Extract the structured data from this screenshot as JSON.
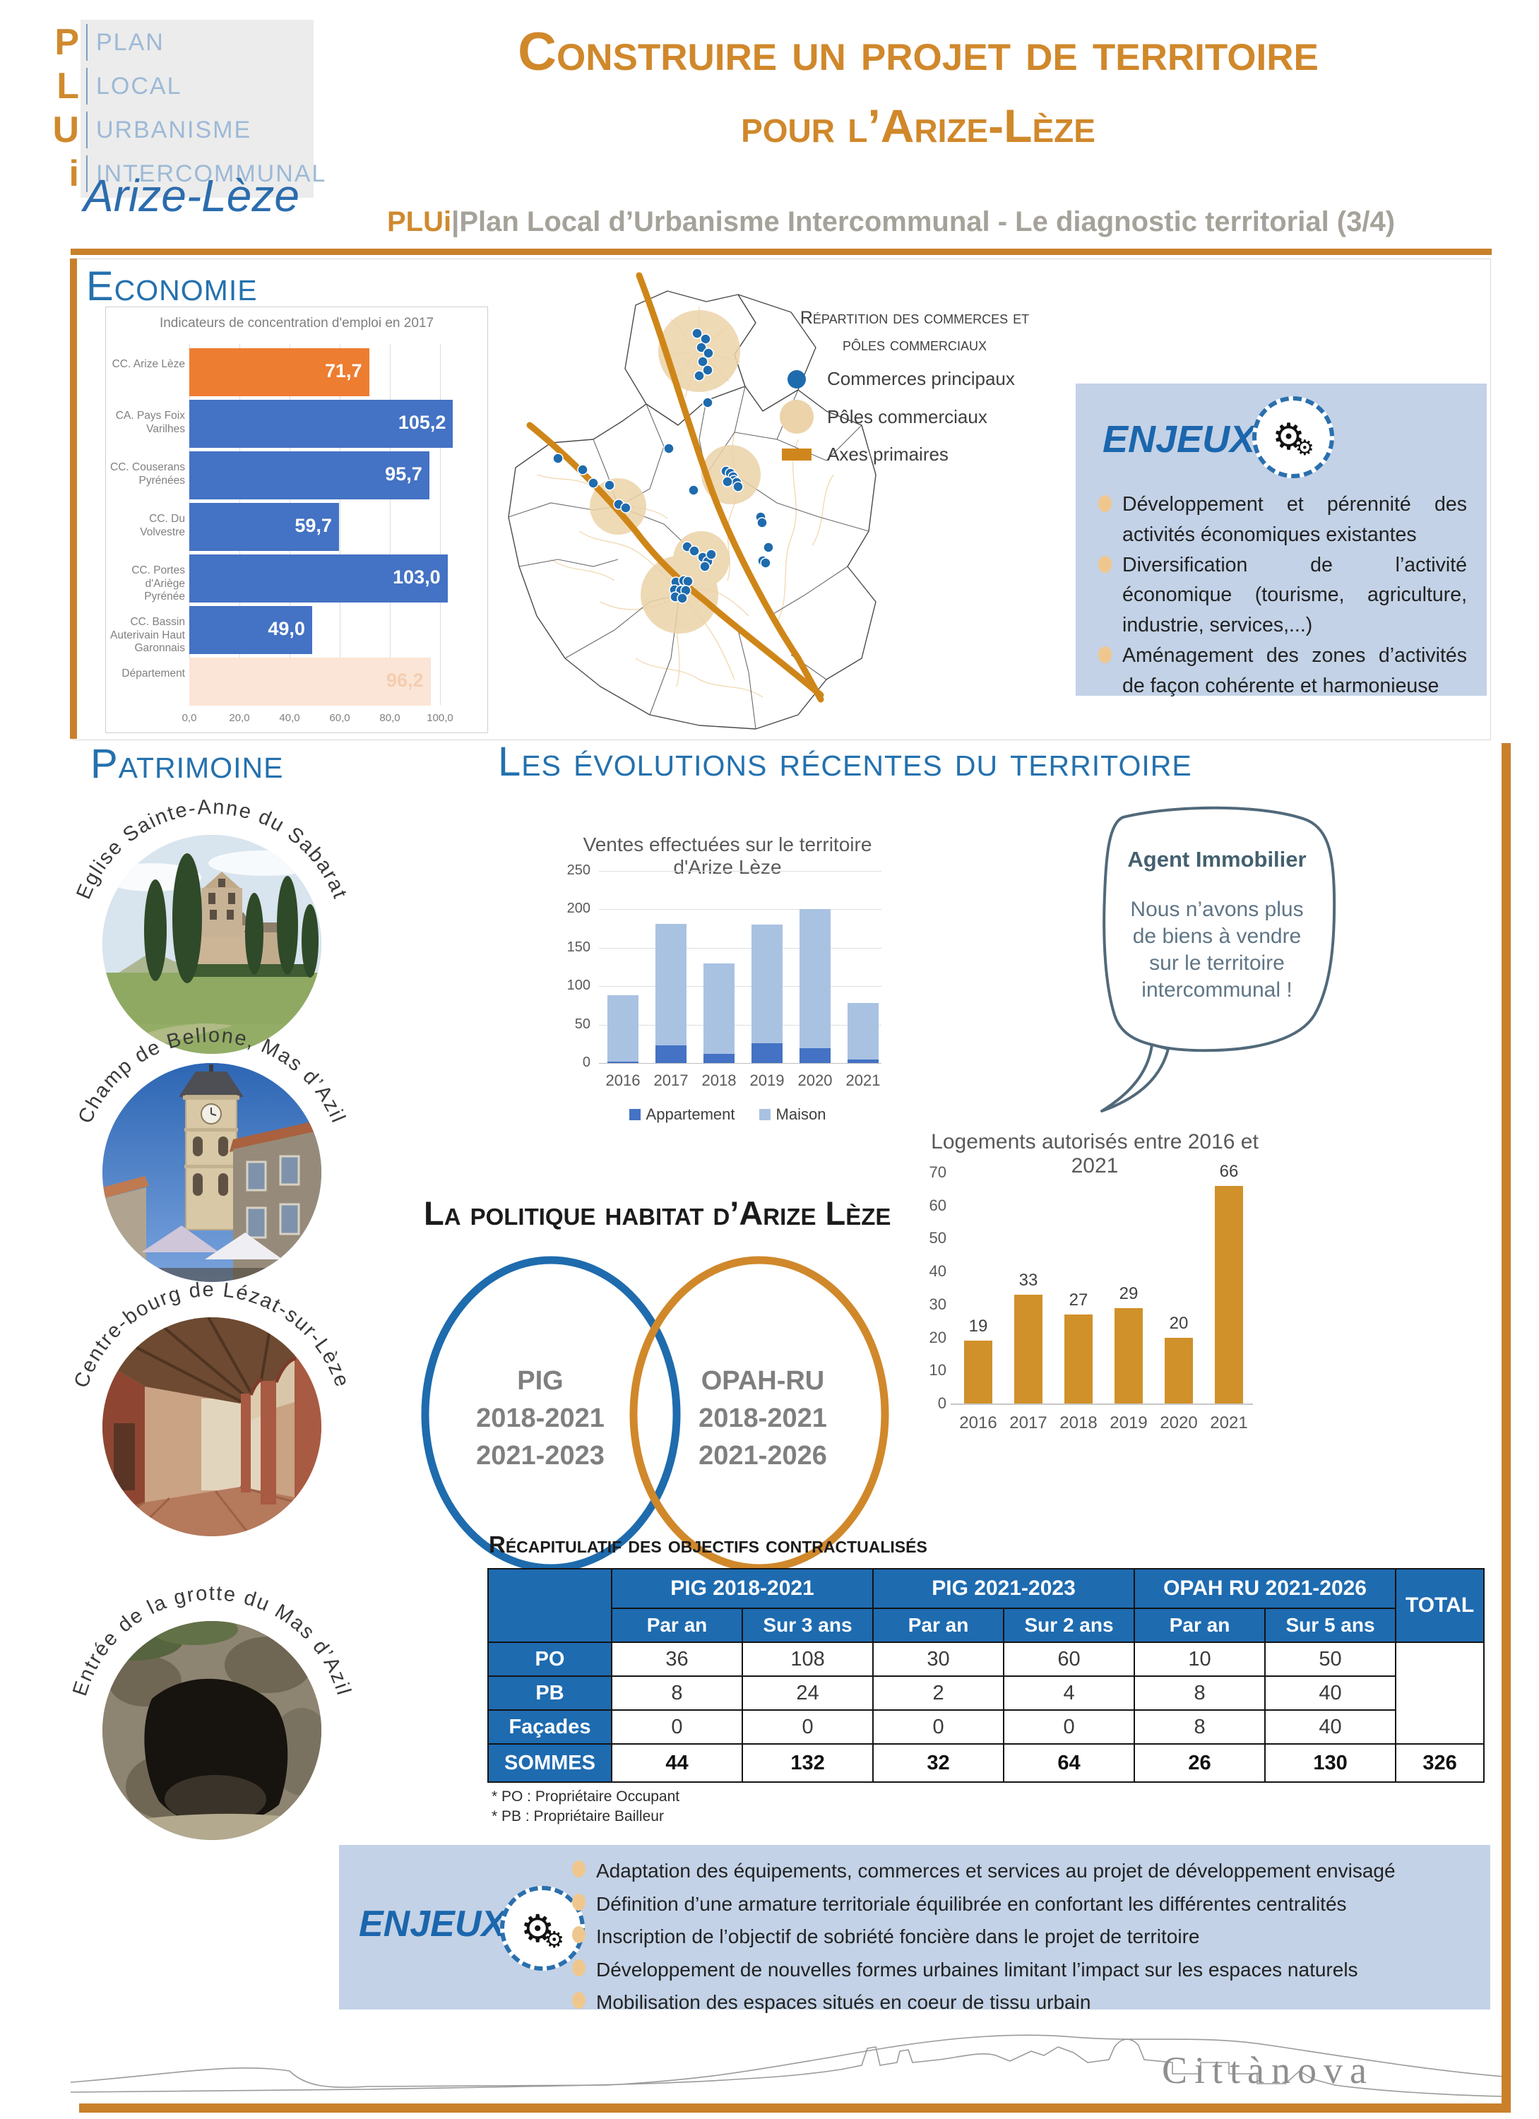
{
  "header": {
    "logo": {
      "rows": [
        {
          "letter": "P",
          "word": "PLAN"
        },
        {
          "letter": "L",
          "word": "LOCAL"
        },
        {
          "letter": "U",
          "word": "URBANISME"
        },
        {
          "letter": "i",
          "word": "INTERCOMMUNAL"
        }
      ],
      "territory": "Arize-Lèze"
    },
    "title_line1": "Construire un projet de territoire",
    "title_line2": "pour l’Arize-Lèze",
    "subtitle_prefix": "PLUi",
    "subtitle_rest": "|Plan Local d’Urbanisme Intercommunal - Le diagnostic territorial (3/4)"
  },
  "economie": {
    "section_title": "Economie",
    "map_legend": {
      "title_line1": "Répartition des commerces et",
      "title_line2": "pôles commerciaux",
      "items": [
        "Commerces principaux",
        "Pôles commerciaux",
        "Axes primaires"
      ]
    },
    "enjeux": {
      "title": "ENJEUX",
      "items": [
        "Développement et pérennité des activités économiques existantes",
        "Diversification de l’activité économique (tourisme, agriculture, industrie, services,...)",
        "Aménagement des zones d’activités de façon cohérente et harmonieuse"
      ]
    }
  },
  "patrimoine": {
    "section_title": "Patrimoine",
    "photos": [
      {
        "label": "Eglise Sainte-Anne du Sabarat"
      },
      {
        "label": "Champ de Bellone, Mas d’Azil"
      },
      {
        "label": "Centre-bourg de Lézat-sur-Lèze"
      },
      {
        "label": "Entrée de la grotte du Mas d’Azil"
      }
    ]
  },
  "evolutions": {
    "section_title": "Les évolutions récentes du territoire",
    "bubble": {
      "speaker": "Agent Immobilier",
      "lines": [
        "Nous n’avons plus",
        "de biens à vendre",
        "sur le territoire",
        "intercommunal !"
      ]
    },
    "politique_title": "La politique habitat d’Arize Lèze",
    "venn": {
      "left_lines": [
        "PIG",
        "2018-2021",
        "2021-2023"
      ],
      "right_lines": [
        "OPAH-RU",
        "2018-2021",
        "2021-2026"
      ]
    },
    "recap_title": "Récapitulatif des objectifs contractualisés",
    "table": {
      "col_groups": [
        "PIG 2018-2021",
        "PIG 2021-2023",
        "OPAH RU 2021-2026"
      ],
      "total_label": "TOTAL",
      "sub_headers": [
        "Par an",
        "Sur 3 ans",
        "Par an",
        "Sur 2 ans",
        "Par an",
        "Sur 5 ans"
      ],
      "rows": [
        {
          "label": "PO",
          "values": [
            "36",
            "108",
            "30",
            "60",
            "10",
            "50"
          ]
        },
        {
          "label": "PB",
          "values": [
            "8",
            "24",
            "2",
            "4",
            "8",
            "40"
          ]
        },
        {
          "label": "Façades",
          "values": [
            "0",
            "0",
            "0",
            "0",
            "8",
            "40"
          ]
        }
      ],
      "sommes": {
        "label": "SOMMES",
        "values": [
          "44",
          "132",
          "32",
          "64",
          "26",
          "130"
        ],
        "total": "326"
      },
      "footnotes": [
        "* PO : Propriétaire Occupant",
        "* PB : Propriétaire Bailleur"
      ]
    },
    "enjeux": {
      "title": "ENJEUX",
      "items": [
        "Adaptation des équipements, commerces et services au projet de développement envisagé",
        "Définition d’une armature territoriale équilibrée en confortant les différentes centralités",
        "Inscription de l’objectif de sobriété foncière dans le projet de territoire",
        "Développement de nouvelles formes urbaines limitant l’impact sur les espaces naturels",
        "Mobilisation des espaces situés en coeur de tissu urbain"
      ]
    }
  },
  "footer": {
    "logo_text": "Cittànova"
  },
  "colors": {
    "accent_orange": "#d0882b",
    "header_blue": "#2471ae",
    "table_blue": "#1e6bb0",
    "enjeux_bg": "#c3d2e6",
    "bullet_dot": "#efc78e"
  },
  "chart_data": [
    {
      "id": "emploi",
      "type": "bar",
      "orientation": "horizontal",
      "title": "Indicateurs de concentration d'emploi en 2017",
      "categories": [
        "CC. Arize Lèze",
        "CA. Pays Foix Varilhes",
        "CC. Couserans Pyrénées",
        "CC. Du Volvestre",
        "CC. Portes d'Ariège Pyrénée",
        "CC. Bassin Auterivain Haut Garonnais",
        "Département"
      ],
      "values": [
        71.7,
        105.2,
        95.7,
        59.7,
        103.0,
        49.0,
        96.2
      ],
      "value_labels": [
        "71,7",
        "105,2",
        "95,7",
        "59,7",
        "103,0",
        "49,0",
        "96,2"
      ],
      "bar_colors": [
        "#ed7d31",
        "#4472c4",
        "#4472c4",
        "#4472c4",
        "#4472c4",
        "#4472c4",
        "#fbe5d6"
      ],
      "value_label_colors": [
        "#ffffff",
        "#ffffff",
        "#ffffff",
        "#ffffff",
        "#ffffff",
        "#ffffff",
        "#f4cdb0"
      ],
      "xlim": [
        0,
        110
      ],
      "x_ticks": [
        "0,0",
        "20,0",
        "40,0",
        "60,0",
        "80,0",
        "100,0"
      ],
      "x_tick_values": [
        0,
        20,
        40,
        60,
        80,
        100
      ],
      "grid": true
    },
    {
      "id": "ventes",
      "type": "stacked_bar",
      "title": "Ventes effectuées sur le territoire d'Arize Lèze",
      "categories": [
        "2016",
        "2017",
        "2018",
        "2019",
        "2020",
        "2021"
      ],
      "series": [
        {
          "name": "Appartement",
          "color": "#4472c4",
          "values": [
            2,
            23,
            12,
            26,
            19,
            5
          ]
        },
        {
          "name": "Maison",
          "color": "#a9c2e2",
          "values": [
            86,
            158,
            118,
            154,
            181,
            73
          ]
        }
      ],
      "ylim": [
        0,
        250
      ],
      "y_ticks": [
        0,
        50,
        100,
        150,
        200,
        250
      ],
      "legend_position": "bottom",
      "grid": true
    },
    {
      "id": "logements",
      "type": "bar",
      "orientation": "vertical",
      "title": "Logements autorisés entre 2016 et 2021",
      "categories": [
        "2016",
        "2017",
        "2018",
        "2019",
        "2020",
        "2021"
      ],
      "values": [
        19,
        33,
        27,
        29,
        20,
        66
      ],
      "bar_color": "#d0912a",
      "ylim": [
        0,
        70
      ],
      "y_ticks": [
        0,
        10,
        20,
        30,
        40,
        50,
        60,
        70
      ],
      "grid": false
    }
  ]
}
